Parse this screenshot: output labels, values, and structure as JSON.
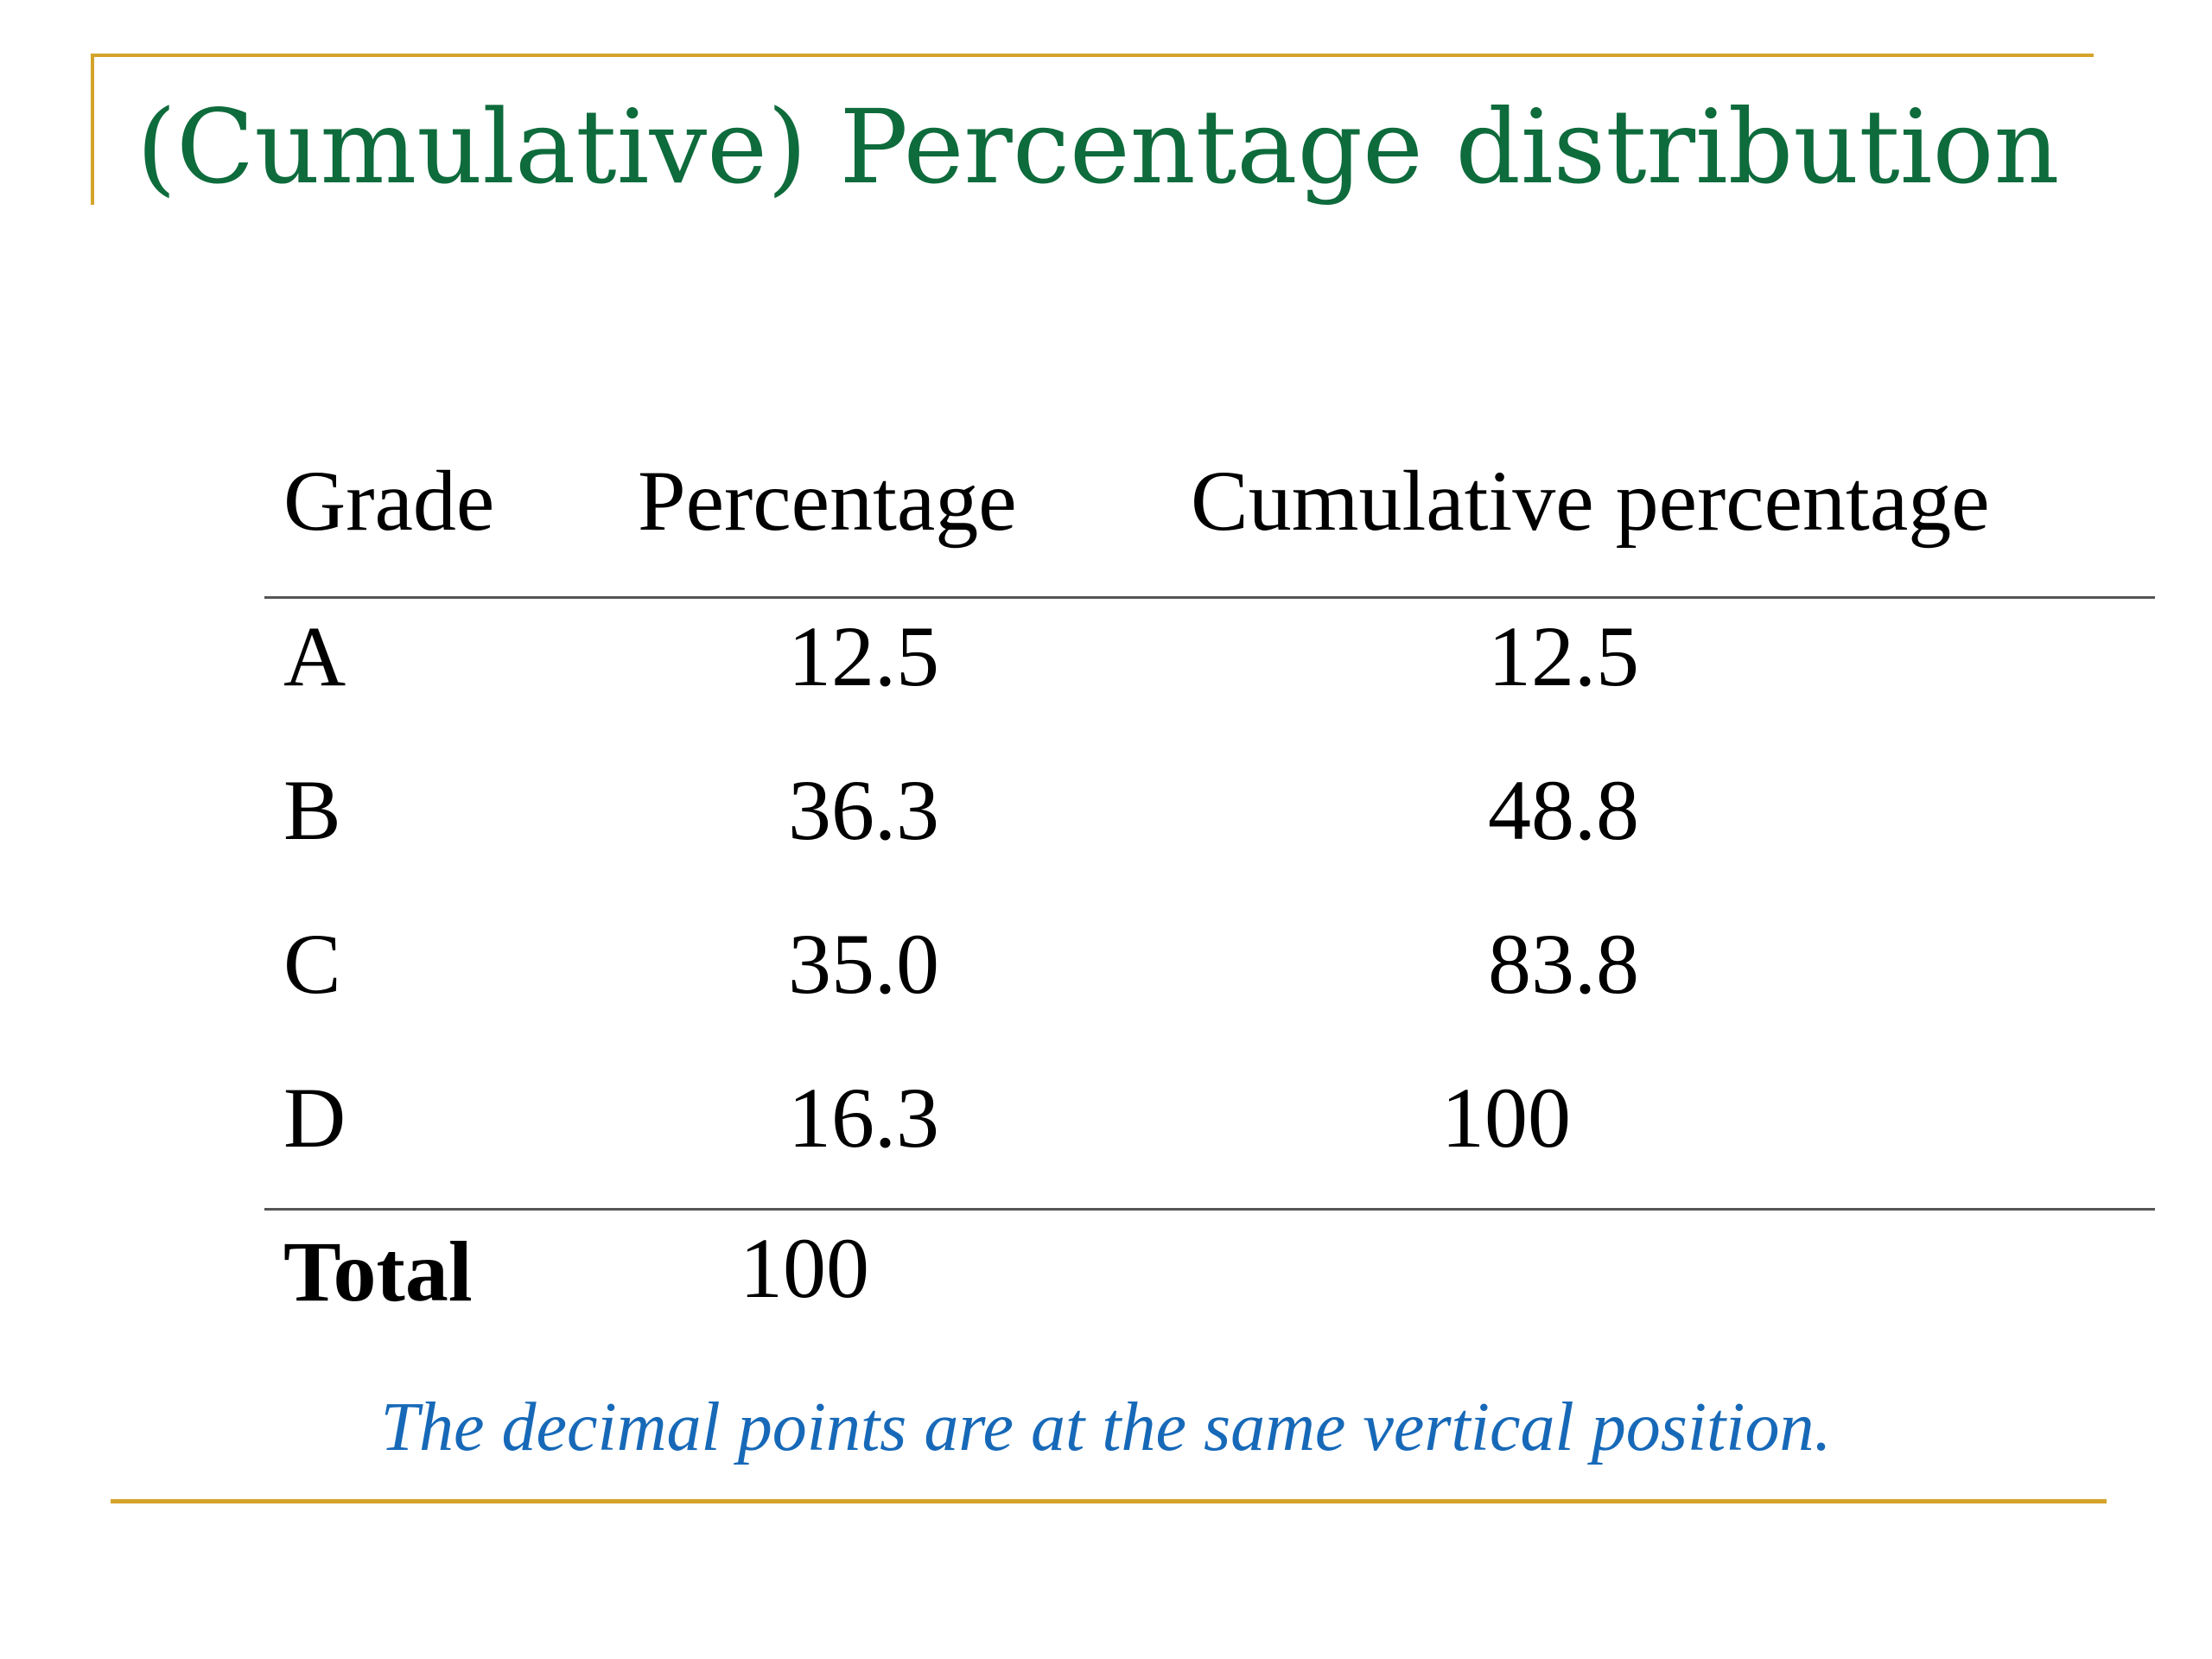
{
  "slide": {
    "title": "(Cumulative) Percentage distribution",
    "colors": {
      "title": "#0e6b3c",
      "rule": "#d4a32a",
      "note": "#1769b8",
      "table_line": "#555555"
    }
  },
  "table": {
    "headers": {
      "grade": "Grade",
      "percentage": "Percentage",
      "cumulative": "Cumulative percentage"
    },
    "rows": [
      {
        "grade": "A",
        "percentage": "12.5",
        "cumulative": "12.5"
      },
      {
        "grade": "B",
        "percentage": "36.3",
        "cumulative": "48.8"
      },
      {
        "grade": "C",
        "percentage": "35.0",
        "cumulative": "83.8"
      },
      {
        "grade": "D",
        "percentage": "16.3",
        "cumulative": "100"
      }
    ],
    "total": {
      "label": "Total",
      "percentage": "100"
    }
  },
  "note": "The decimal points are at the same vertical position."
}
